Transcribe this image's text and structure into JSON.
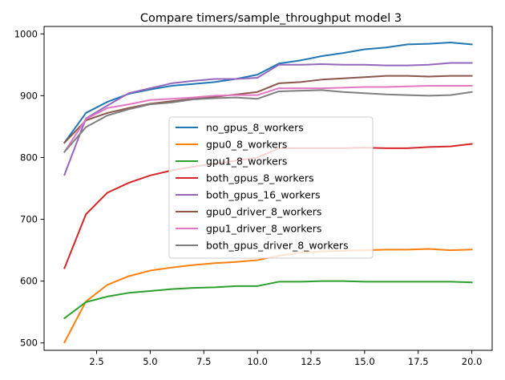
{
  "chart_data": {
    "type": "line",
    "title": "Compare timers/sample_throughput model 3",
    "xlabel": "",
    "ylabel": "",
    "xlim": [
      0.05,
      20.95
    ],
    "ylim": [
      488,
      1012
    ],
    "xticks": [
      2.5,
      5.0,
      7.5,
      10.0,
      12.5,
      15.0,
      17.5,
      20.0
    ],
    "xtick_labels": [
      "2.5",
      "5.0",
      "7.5",
      "10.0",
      "12.5",
      "15.0",
      "17.5",
      "20.0"
    ],
    "yticks": [
      500,
      600,
      700,
      800,
      900,
      1000
    ],
    "ytick_labels": [
      "500",
      "600",
      "700",
      "800",
      "900",
      "1000"
    ],
    "grid": false,
    "legend_position": "center",
    "x": [
      1,
      2,
      3,
      4,
      5,
      6,
      7,
      8,
      9,
      10,
      11,
      12,
      13,
      14,
      15,
      16,
      17,
      18,
      19,
      20
    ],
    "series": [
      {
        "name": "no_gpus_8_workers",
        "color": "#1f77b4",
        "values": [
          824,
          872,
          890,
          903,
          910,
          916,
          919,
          922,
          927,
          934,
          952,
          957,
          964,
          969,
          975,
          978,
          983,
          984,
          986,
          983
        ]
      },
      {
        "name": "gpu0_8_workers",
        "color": "#ff7f0e",
        "values": [
          501,
          567,
          594,
          608,
          617,
          622,
          626,
          629,
          631,
          634,
          641,
          646,
          648,
          649,
          650,
          651,
          651,
          652,
          650,
          651
        ]
      },
      {
        "name": "gpu1_8_workers",
        "color": "#2ca02c",
        "values": [
          540,
          566,
          575,
          581,
          584,
          587,
          589,
          590,
          592,
          592,
          599,
          599,
          600,
          600,
          599,
          599,
          599,
          599,
          599,
          598
        ]
      },
      {
        "name": "both_gpus_8_workers",
        "color": "#d62728",
        "values": [
          621,
          708,
          743,
          759,
          771,
          779,
          785,
          790,
          795,
          800,
          815,
          815,
          815,
          815,
          816,
          815,
          815,
          817,
          818,
          822
        ]
      },
      {
        "name": "both_gpus_16_workers",
        "color": "#9467bd",
        "values": [
          772,
          863,
          884,
          904,
          912,
          920,
          924,
          927,
          927,
          929,
          950,
          950,
          951,
          950,
          950,
          949,
          949,
          950,
          953,
          953
        ]
      },
      {
        "name": "gpu0_driver_8_workers",
        "color": "#8c564b",
        "values": [
          824,
          860,
          872,
          880,
          887,
          891,
          895,
          898,
          902,
          906,
          920,
          922,
          926,
          928,
          930,
          932,
          932,
          931,
          932,
          932
        ]
      },
      {
        "name": "gpu1_driver_8_workers",
        "color": "#e377c2",
        "values": [
          809,
          862,
          880,
          886,
          893,
          895,
          897,
          900,
          901,
          901,
          912,
          912,
          912,
          913,
          914,
          914,
          915,
          916,
          916,
          916
        ]
      },
      {
        "name": "both_gpus_driver_8_workers",
        "color": "#7f7f7f",
        "values": [
          809,
          849,
          868,
          878,
          886,
          889,
          894,
          896,
          897,
          895,
          907,
          908,
          909,
          906,
          904,
          902,
          901,
          900,
          901,
          906
        ]
      }
    ]
  }
}
